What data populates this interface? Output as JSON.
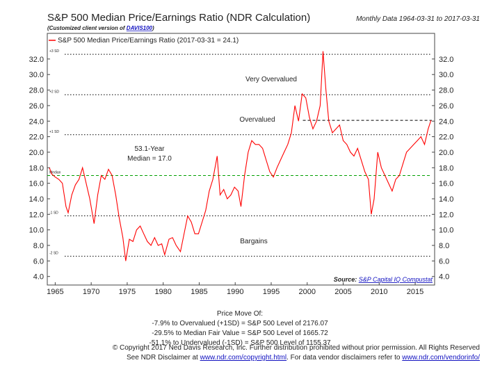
{
  "chart_data": {
    "type": "line",
    "title": "S&P 500 Median Price/Earnings Ratio (NDR Calculation)",
    "subtitle": [
      "(Customized client version of ",
      "DAVIS100",
      ")"
    ],
    "date_range": "Monthly Data 1964-03-31 to 2017-03-31",
    "x": [
      1964.2,
      1964.5,
      1965,
      1965.5,
      1966,
      1966.5,
      1966.8,
      1967.3,
      1967.8,
      1968.3,
      1968.8,
      1969.3,
      1969.8,
      1970.4,
      1970.9,
      1971.4,
      1971.9,
      1972.4,
      1972.9,
      1973.4,
      1973.9,
      1974.4,
      1974.8,
      1975.3,
      1975.8,
      1976.3,
      1976.8,
      1977.3,
      1977.8,
      1978.3,
      1978.8,
      1979.3,
      1979.8,
      1980.2,
      1980.8,
      1981.3,
      1981.8,
      1982.4,
      1982.9,
      1983.4,
      1983.9,
      1984.4,
      1984.9,
      1985.4,
      1985.9,
      1986.4,
      1986.9,
      1987.5,
      1987.9,
      1988.4,
      1988.9,
      1989.4,
      1989.9,
      1990.4,
      1990.8,
      1991.3,
      1991.8,
      1992.3,
      1992.8,
      1993.3,
      1993.8,
      1994.3,
      1994.8,
      1995.3,
      1995.8,
      1996.3,
      1996.8,
      1997.3,
      1997.8,
      1998.3,
      1998.8,
      1999.3,
      1999.8,
      2000.3,
      2000.8,
      2001.3,
      2001.8,
      2002.2,
      2002.6,
      2003.0,
      2003.5,
      2004.0,
      2004.5,
      2005.0,
      2005.5,
      2006.0,
      2006.5,
      2007.0,
      2007.5,
      2008.0,
      2008.5,
      2008.9,
      2009.3,
      2009.8,
      2010.3,
      2010.8,
      2011.3,
      2011.8,
      2012.3,
      2012.8,
      2013.3,
      2013.8,
      2014.3,
      2014.8,
      2015.3,
      2015.8,
      2016.3,
      2016.8,
      2017.2
    ],
    "series": [
      {
        "name": "S&P 500 Median Price/Earnings Ratio (2017-03-31 = 24.1)",
        "color": "#ff0000",
        "values": [
          18.0,
          17.2,
          16.8,
          16.5,
          16.0,
          13.0,
          12.2,
          14.5,
          15.8,
          16.5,
          18.0,
          16.0,
          14.0,
          10.8,
          14.5,
          17.0,
          16.5,
          17.8,
          17.0,
          14.5,
          11.5,
          9.0,
          6.0,
          8.8,
          8.5,
          10.0,
          10.5,
          9.5,
          8.5,
          8.0,
          9.0,
          8.0,
          8.2,
          6.8,
          8.8,
          9.0,
          8.0,
          7.2,
          9.5,
          11.8,
          11.0,
          9.5,
          9.5,
          11.0,
          12.5,
          15.0,
          16.5,
          19.5,
          14.5,
          15.2,
          14.0,
          14.5,
          15.5,
          15.0,
          13.0,
          17.0,
          20.0,
          21.5,
          21.0,
          21.0,
          20.5,
          19.0,
          17.5,
          16.8,
          18.0,
          19.0,
          20.0,
          21.0,
          22.5,
          26.0,
          24.0,
          27.5,
          27.0,
          24.5,
          23.0,
          24.0,
          26.0,
          33.0,
          28.0,
          24.0,
          22.5,
          23.0,
          23.5,
          21.5,
          21.0,
          20.0,
          19.5,
          20.5,
          19.0,
          17.5,
          16.5,
          12.0,
          14.0,
          20.0,
          18.0,
          17.0,
          16.0,
          15.0,
          16.5,
          17.0,
          18.5,
          20.0,
          20.5,
          21.0,
          21.5,
          22.0,
          21.0,
          23.0,
          24.1
        ]
      }
    ],
    "xlim": [
      1963.9,
      2017.7
    ],
    "ylim": [
      2.9,
      35.3
    ],
    "xticks": [
      1965,
      1970,
      1975,
      1980,
      1985,
      1990,
      1995,
      2000,
      2005,
      2010,
      2015
    ],
    "yticks": [
      {
        "value": 4,
        "label": "4.0"
      },
      {
        "value": 6,
        "label": "6.0"
      },
      {
        "value": 8,
        "label": "8.0"
      },
      {
        "value": 10,
        "label": "10.0"
      },
      {
        "value": 12,
        "label": "12.0"
      },
      {
        "value": 14,
        "label": "14.0"
      },
      {
        "value": 16,
        "label": "16.0"
      },
      {
        "value": 18,
        "label": "18.0"
      },
      {
        "value": 20,
        "label": "20.0"
      },
      {
        "value": 22,
        "label": "22.0"
      },
      {
        "value": 24,
        "label": "24.0"
      },
      {
        "value": 26,
        "label": "26.0"
      },
      {
        "value": 28,
        "label": "28.0"
      },
      {
        "value": 30,
        "label": "30.0"
      },
      {
        "value": 32,
        "label": "32.0"
      }
    ],
    "reference_lines": [
      {
        "label": "+3 SD",
        "value": 32.6,
        "color": "#000000"
      },
      {
        "label": "+2 SD",
        "value": 27.4,
        "color": "#000000"
      },
      {
        "label": "+1 SD",
        "value": 22.25,
        "color": "#000000"
      },
      {
        "label": "Median",
        "value": 17.0,
        "color": "#00a000"
      },
      {
        "label": "-1 SD",
        "value": 11.8,
        "color": "#000000"
      },
      {
        "label": "-2 SD",
        "value": 6.6,
        "color": "#000000"
      }
    ],
    "current_line": {
      "value": 24.1,
      "start": 1999.4
    },
    "annotations": [
      "Very Overvalued",
      "Overvalued",
      "53.1-Year",
      "Median = 17.0",
      "Bargains"
    ],
    "source": [
      "Source:",
      "S&P Capital IQ Compustat"
    ],
    "price_move": [
      "Price Move Of:",
      "-7.9% to Overvalued (+1SD) = S&P 500 Level of 2176.07",
      "-29.5% to Median Fair Value = S&P 500 Level of 1665.72",
      "-51.1% to Undervalued (-1SD) = S&P 500 Level of 1155.37"
    ],
    "copyright": "© Copyright 2017 Ned Davis Research, Inc. Further distribution prohibited without prior permission. All Rights Reserved",
    "disclaimer": [
      "See NDR Disclaimer at ",
      "www.ndr.com/copyright.html",
      ". For data vendor disclaimers refer to ",
      "www.ndr.com/vendorinfo/"
    ]
  }
}
